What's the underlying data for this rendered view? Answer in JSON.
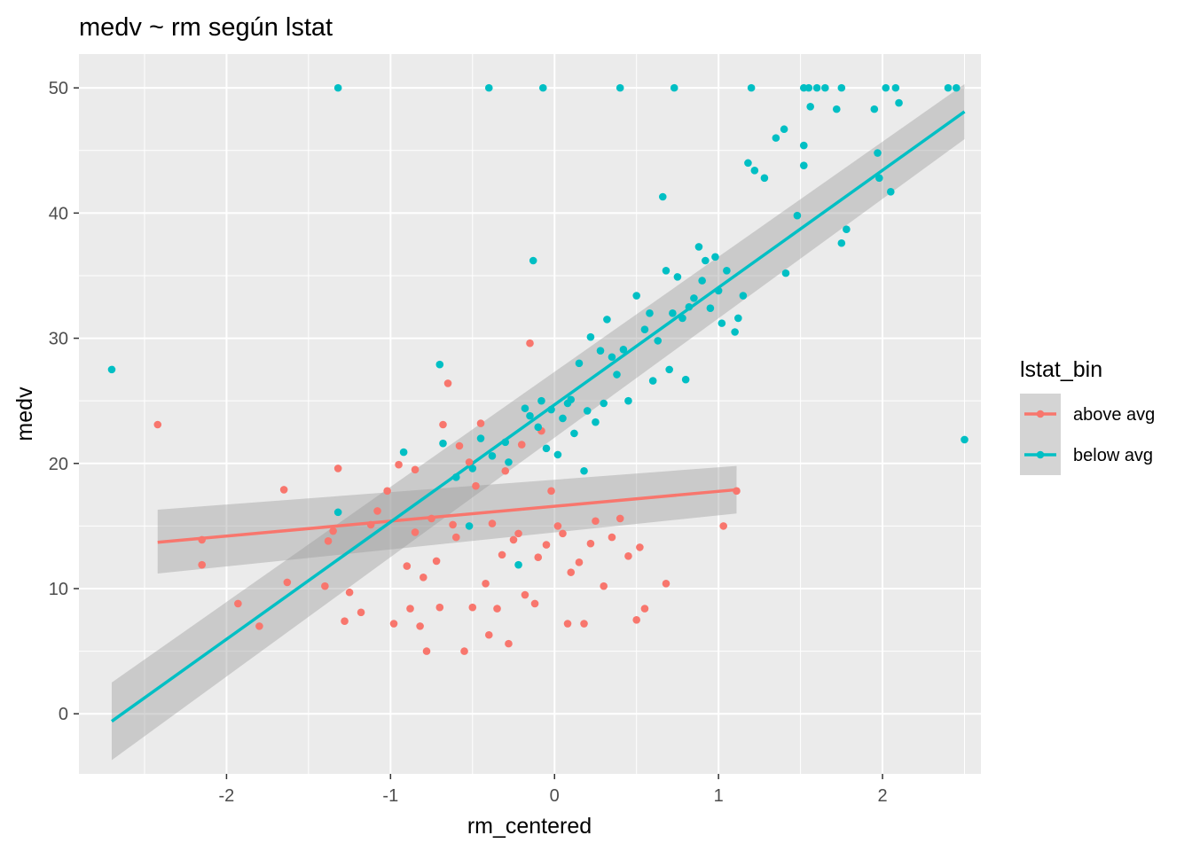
{
  "chart_data": {
    "type": "scatter",
    "title": "medv ~ rm según lstat",
    "xlabel": "rm_centered",
    "ylabel": "medv",
    "xlim": [
      -2.9,
      2.6
    ],
    "ylim": [
      -4.8,
      52.7
    ],
    "x_ticks": [
      -2,
      -1,
      0,
      1,
      2
    ],
    "y_ticks": [
      0,
      10,
      20,
      30,
      40,
      50
    ],
    "grid": true,
    "legend": {
      "title": "lstat_bin",
      "position": "right"
    },
    "series": [
      {
        "name": "above avg",
        "color": "#F8766D",
        "fit_line": {
          "x": [
            -2.42,
            1.11
          ],
          "y": [
            13.7,
            17.9
          ]
        },
        "fit_band": {
          "x": [
            -2.42,
            1.11
          ],
          "upper": [
            16.3,
            19.8
          ],
          "lower": [
            11.2,
            16.0
          ]
        },
        "points": [
          [
            -2.42,
            23.1
          ],
          [
            -2.15,
            13.9
          ],
          [
            -2.15,
            11.9
          ],
          [
            -1.93,
            8.8
          ],
          [
            -1.8,
            7.0
          ],
          [
            -1.65,
            17.9
          ],
          [
            -1.63,
            10.5
          ],
          [
            -1.4,
            10.2
          ],
          [
            -1.38,
            13.8
          ],
          [
            -1.35,
            14.6
          ],
          [
            -1.32,
            19.6
          ],
          [
            -1.28,
            7.4
          ],
          [
            -1.25,
            9.7
          ],
          [
            -1.18,
            8.1
          ],
          [
            -1.12,
            15.1
          ],
          [
            -1.08,
            16.2
          ],
          [
            -1.02,
            17.8
          ],
          [
            -0.98,
            7.2
          ],
          [
            -0.95,
            19.9
          ],
          [
            -0.9,
            11.8
          ],
          [
            -0.88,
            8.4
          ],
          [
            -0.85,
            19.5
          ],
          [
            -0.85,
            14.5
          ],
          [
            -0.82,
            7.0
          ],
          [
            -0.8,
            10.9
          ],
          [
            -0.78,
            5.0
          ],
          [
            -0.75,
            15.6
          ],
          [
            -0.72,
            12.2
          ],
          [
            -0.7,
            8.5
          ],
          [
            -0.68,
            23.1
          ],
          [
            -0.65,
            26.4
          ],
          [
            -0.62,
            15.1
          ],
          [
            -0.6,
            14.1
          ],
          [
            -0.58,
            21.4
          ],
          [
            -0.55,
            5.0
          ],
          [
            -0.52,
            20.1
          ],
          [
            -0.5,
            8.5
          ],
          [
            -0.48,
            18.2
          ],
          [
            -0.45,
            23.2
          ],
          [
            -0.42,
            10.4
          ],
          [
            -0.4,
            6.3
          ],
          [
            -0.38,
            15.2
          ],
          [
            -0.35,
            8.4
          ],
          [
            -0.32,
            12.7
          ],
          [
            -0.3,
            19.4
          ],
          [
            -0.28,
            5.6
          ],
          [
            -0.25,
            13.9
          ],
          [
            -0.22,
            14.4
          ],
          [
            -0.2,
            21.5
          ],
          [
            -0.18,
            9.5
          ],
          [
            -0.15,
            29.6
          ],
          [
            -0.12,
            8.8
          ],
          [
            -0.1,
            12.5
          ],
          [
            -0.08,
            22.6
          ],
          [
            -0.05,
            13.5
          ],
          [
            -0.02,
            17.8
          ],
          [
            0.02,
            15.0
          ],
          [
            0.05,
            14.4
          ],
          [
            0.08,
            7.2
          ],
          [
            0.1,
            11.3
          ],
          [
            0.15,
            12.1
          ],
          [
            0.18,
            7.2
          ],
          [
            0.22,
            13.6
          ],
          [
            0.25,
            15.4
          ],
          [
            0.3,
            10.2
          ],
          [
            0.35,
            14.1
          ],
          [
            0.4,
            15.6
          ],
          [
            0.45,
            12.6
          ],
          [
            0.5,
            7.5
          ],
          [
            0.52,
            13.3
          ],
          [
            0.55,
            8.4
          ],
          [
            0.68,
            10.4
          ],
          [
            1.03,
            15.0
          ],
          [
            1.11,
            17.8
          ]
        ]
      },
      {
        "name": "below avg",
        "color": "#00BFC4",
        "fit_line": {
          "x": [
            -2.7,
            2.5
          ],
          "y": [
            -0.6,
            48.1
          ]
        },
        "fit_band": {
          "x": [
            -2.7,
            2.5
          ],
          "upper": [
            2.5,
            50.3
          ],
          "lower": [
            -3.7,
            45.9
          ]
        },
        "points": [
          [
            -2.7,
            27.5
          ],
          [
            -1.32,
            50.0
          ],
          [
            -1.32,
            16.1
          ],
          [
            -0.92,
            20.9
          ],
          [
            -0.7,
            27.9
          ],
          [
            -0.68,
            21.6
          ],
          [
            -0.6,
            18.9
          ],
          [
            -0.52,
            15.0
          ],
          [
            -0.5,
            19.6
          ],
          [
            -0.45,
            22.0
          ],
          [
            -0.4,
            50.0
          ],
          [
            -0.38,
            20.6
          ],
          [
            -0.3,
            21.7
          ],
          [
            -0.28,
            20.1
          ],
          [
            -0.22,
            11.9
          ],
          [
            -0.18,
            24.4
          ],
          [
            -0.15,
            23.8
          ],
          [
            -0.13,
            36.2
          ],
          [
            -0.1,
            22.9
          ],
          [
            -0.08,
            25.0
          ],
          [
            -0.07,
            50.0
          ],
          [
            -0.05,
            21.2
          ],
          [
            -0.02,
            24.3
          ],
          [
            0.02,
            20.7
          ],
          [
            0.05,
            23.6
          ],
          [
            0.08,
            24.8
          ],
          [
            0.1,
            25.1
          ],
          [
            0.12,
            22.4
          ],
          [
            0.15,
            28.0
          ],
          [
            0.18,
            19.4
          ],
          [
            0.2,
            24.2
          ],
          [
            0.22,
            30.1
          ],
          [
            0.25,
            23.3
          ],
          [
            0.28,
            29.0
          ],
          [
            0.3,
            24.8
          ],
          [
            0.32,
            31.5
          ],
          [
            0.35,
            28.5
          ],
          [
            0.38,
            27.1
          ],
          [
            0.4,
            50.0
          ],
          [
            0.42,
            29.1
          ],
          [
            0.45,
            25.0
          ],
          [
            0.5,
            33.4
          ],
          [
            0.55,
            30.7
          ],
          [
            0.58,
            32.0
          ],
          [
            0.6,
            26.6
          ],
          [
            0.63,
            29.8
          ],
          [
            0.66,
            41.3
          ],
          [
            0.68,
            35.4
          ],
          [
            0.7,
            27.5
          ],
          [
            0.72,
            32.0
          ],
          [
            0.73,
            50.0
          ],
          [
            0.75,
            34.9
          ],
          [
            0.78,
            31.6
          ],
          [
            0.8,
            26.7
          ],
          [
            0.82,
            32.5
          ],
          [
            0.85,
            33.2
          ],
          [
            0.88,
            37.3
          ],
          [
            0.9,
            34.6
          ],
          [
            0.92,
            36.2
          ],
          [
            0.95,
            32.4
          ],
          [
            0.98,
            36.5
          ],
          [
            1.0,
            33.8
          ],
          [
            1.02,
            31.2
          ],
          [
            1.05,
            35.4
          ],
          [
            1.1,
            30.5
          ],
          [
            1.12,
            31.6
          ],
          [
            1.15,
            33.4
          ],
          [
            1.18,
            44.0
          ],
          [
            1.2,
            50.0
          ],
          [
            1.22,
            43.4
          ],
          [
            1.28,
            42.8
          ],
          [
            1.35,
            46.0
          ],
          [
            1.4,
            46.7
          ],
          [
            1.41,
            35.2
          ],
          [
            1.48,
            39.8
          ],
          [
            1.52,
            50.0
          ],
          [
            1.52,
            45.4
          ],
          [
            1.52,
            43.8
          ],
          [
            1.55,
            50.0
          ],
          [
            1.56,
            48.5
          ],
          [
            1.6,
            50.0
          ],
          [
            1.65,
            50.0
          ],
          [
            1.72,
            48.3
          ],
          [
            1.75,
            50.0
          ],
          [
            1.75,
            37.6
          ],
          [
            1.78,
            38.7
          ],
          [
            1.95,
            48.3
          ],
          [
            1.97,
            44.8
          ],
          [
            1.98,
            42.8
          ],
          [
            2.02,
            50.0
          ],
          [
            2.05,
            41.7
          ],
          [
            2.08,
            50.0
          ],
          [
            2.1,
            48.8
          ],
          [
            2.4,
            50.0
          ],
          [
            2.45,
            50.0
          ],
          [
            2.5,
            21.9
          ]
        ]
      }
    ]
  }
}
